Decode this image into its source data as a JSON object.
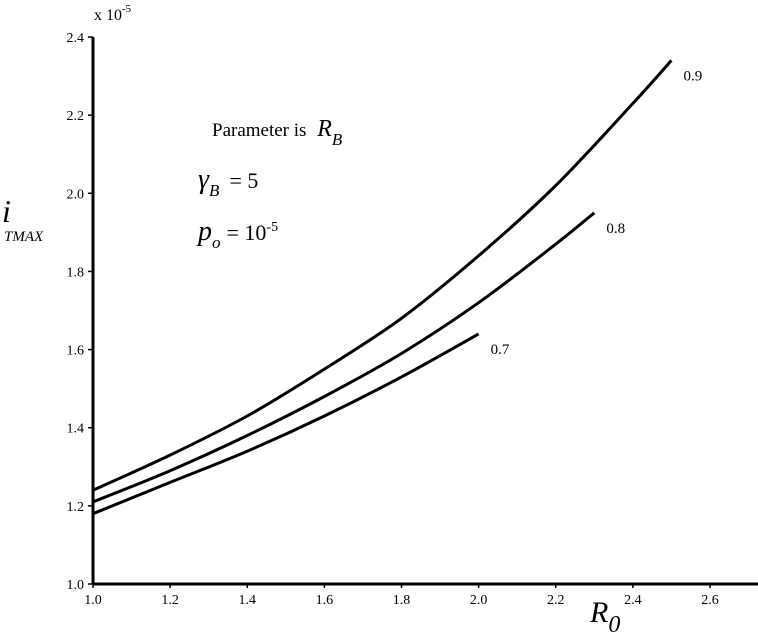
{
  "chart_data": {
    "type": "line",
    "x_range": [
      1.0,
      2.7
    ],
    "y_range": [
      1.0,
      2.4
    ],
    "x_ticks": [
      "1.0",
      "1.2",
      "1.4",
      "1.6",
      "1.8",
      "2.0",
      "2.2",
      "2.4",
      "2.6"
    ],
    "y_ticks": [
      "1.0",
      "1.2",
      "1.4",
      "1.6",
      "1.8",
      "2.0",
      "2.2",
      "2.4"
    ],
    "y_multiplier": {
      "base": "x 10",
      "exponent": "-5"
    },
    "xlabel": {
      "main": "R",
      "subscript": "0"
    },
    "ylabel": {
      "main": "i",
      "subscript": "TMAX"
    },
    "annotations": {
      "parameter": {
        "text": "Parameter is ",
        "symbol": "R",
        "subscript": "B"
      },
      "gamma": {
        "symbol": "γ",
        "subscript": "B",
        "text": "=  5"
      },
      "p": {
        "symbol": "p",
        "subscript": "o",
        "text": "= 10",
        "exponent": "-5"
      }
    },
    "grid": false,
    "series": [
      {
        "name": "0.9",
        "x": [
          1.0,
          1.2,
          1.4,
          1.6,
          1.8,
          2.0,
          2.2,
          2.4,
          2.5
        ],
        "y": [
          1.24,
          1.33,
          1.43,
          1.55,
          1.68,
          1.84,
          2.02,
          2.23,
          2.34
        ]
      },
      {
        "name": "0.8",
        "x": [
          1.0,
          1.2,
          1.4,
          1.6,
          1.8,
          2.0,
          2.2,
          2.3
        ],
        "y": [
          1.21,
          1.29,
          1.38,
          1.48,
          1.59,
          1.72,
          1.87,
          1.95
        ]
      },
      {
        "name": "0.7",
        "x": [
          1.0,
          1.2,
          1.4,
          1.6,
          1.8,
          2.0
        ],
        "y": [
          1.18,
          1.26,
          1.34,
          1.43,
          1.53,
          1.64
        ]
      }
    ]
  }
}
